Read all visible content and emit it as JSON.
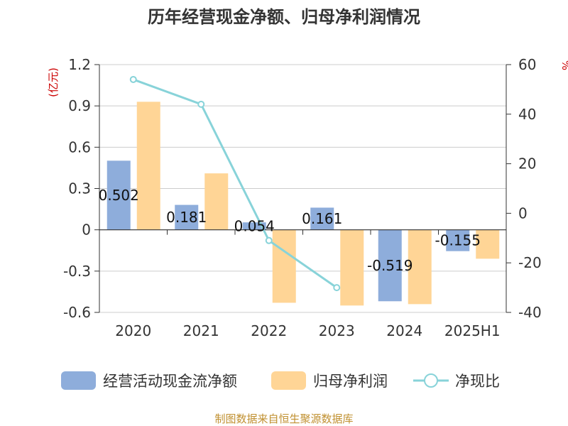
{
  "colors": {
    "bar_cash": "#8EADDB",
    "bar_profit": "#FFD596",
    "line": "#88D3D9",
    "grid": "#cccccc",
    "axis": "#333333",
    "unit": "#cc0000",
    "source": "#c09030"
  },
  "chart_data": {
    "type": "bar",
    "title": "历年经营现金净额、归母净利润情况",
    "categories": [
      "2020",
      "2021",
      "2022",
      "2023",
      "2024",
      "2025H1"
    ],
    "left_axis": {
      "unit_label": "(亿元)",
      "ylim": [
        -0.6,
        1.2
      ],
      "ticks": [
        "1.2",
        "0.9",
        "0.6",
        "0.3",
        "0",
        "-0.3",
        "-0.6"
      ]
    },
    "right_axis": {
      "unit_label": "%",
      "ylim": [
        -40,
        60
      ],
      "ticks": [
        "60",
        "40",
        "20",
        "0",
        "-20",
        "-40"
      ]
    },
    "series": [
      {
        "name": "经营活动现金流净额",
        "type": "bar",
        "axis": "left",
        "values": [
          0.502,
          0.181,
          0.054,
          0.161,
          -0.519,
          -0.155
        ],
        "labels": [
          "0.502",
          "0.181",
          "0.054",
          "0.161",
          "-0.519",
          "-0.155"
        ]
      },
      {
        "name": "归母净利润",
        "type": "bar",
        "axis": "left",
        "values": [
          0.93,
          0.41,
          -0.53,
          -0.55,
          -0.54,
          -0.21
        ]
      },
      {
        "name": "净现比",
        "type": "line",
        "axis": "right",
        "values": [
          54,
          44,
          -11,
          -30,
          null,
          null
        ]
      }
    ],
    "legend_position": "bottom",
    "source": "制图数据来自恒生聚源数据库"
  }
}
